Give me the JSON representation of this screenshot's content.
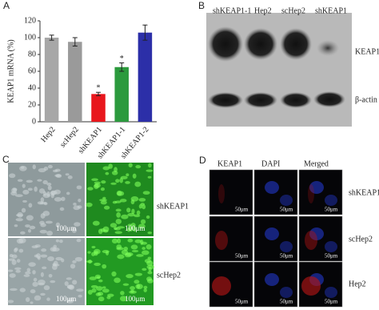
{
  "chart_data": {
    "type": "bar",
    "ylabel": "KEAP1 mRNA (%)",
    "categories": [
      "Hep2",
      "scHep2",
      "shKEAP1",
      "shKEAP1-1",
      "shKEAP1-2"
    ],
    "values": [
      100,
      95,
      33,
      65,
      106
    ],
    "errors": [
      3,
      5,
      2,
      5,
      9
    ],
    "colors": [
      "#a7a7a7",
      "#9a9a9a",
      "#e8161c",
      "#2b9a3d",
      "#2c2fa8"
    ],
    "significance": [
      null,
      null,
      "*",
      "*",
      null
    ],
    "ylim": [
      0,
      120
    ],
    "yticks": [
      0,
      20,
      40,
      60,
      80,
      100,
      120
    ],
    "grid": false
  },
  "panels": {
    "A": {
      "label": "A"
    },
    "B": {
      "label": "B",
      "lanes": [
        "shKEAP1-1",
        "Hep2",
        "scHep2",
        "shKEAP1"
      ],
      "bands": [
        "KEAP1",
        "β-actin"
      ]
    },
    "C": {
      "label": "C",
      "rows": [
        "shKEAP1",
        "scHep2"
      ],
      "scale_bar": "100μm"
    },
    "D": {
      "label": "D",
      "columns": [
        "KEAP1",
        "DAPI",
        "Merged"
      ],
      "rows": [
        "shKEAP1",
        "scHep2",
        "Hep2"
      ],
      "scale_bar": "50μm"
    }
  }
}
